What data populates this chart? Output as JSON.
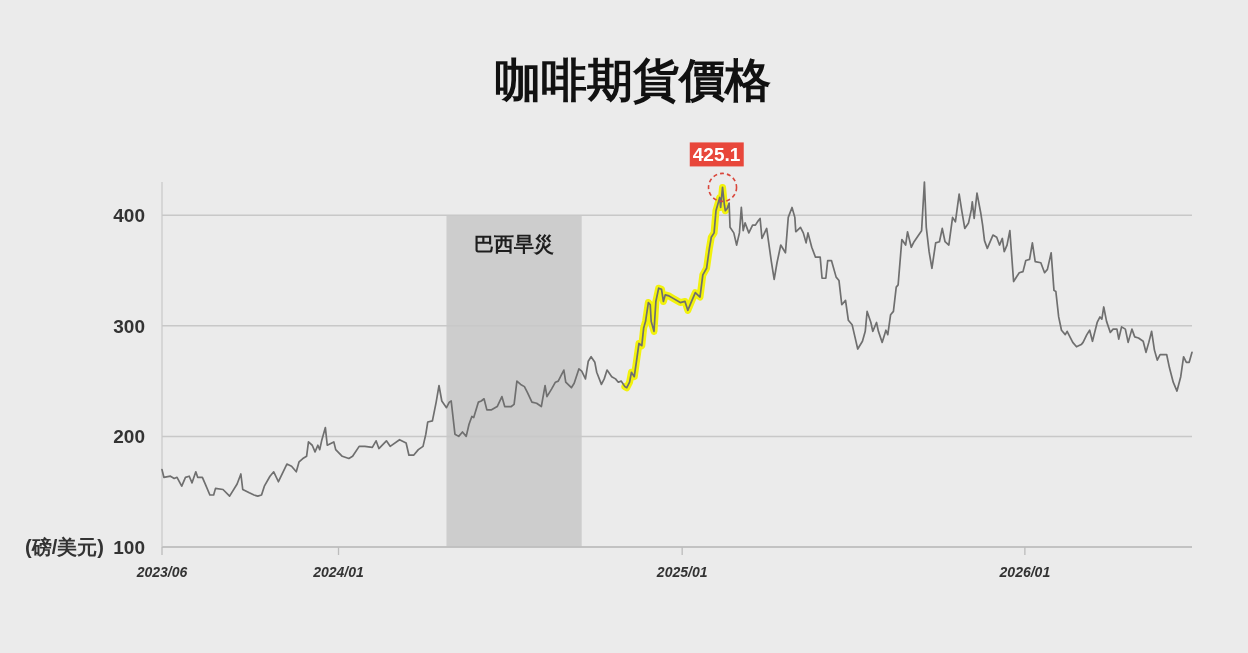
{
  "chart_data": {
    "type": "line",
    "title": "咖啡期貨價格",
    "ylabel": "(磅/美元)",
    "xlim": [
      "2023-06-27",
      "2026-06-28"
    ],
    "xticks": [
      {
        "value": "2023-06-27",
        "label": "2023/06"
      },
      {
        "value": "2024-01-01",
        "label": "2024/01"
      },
      {
        "value": "2025-01-01",
        "label": "2025/01"
      },
      {
        "value": "2026-01-01",
        "label": "2026/01"
      }
    ],
    "ylim": [
      100,
      430
    ],
    "yticks": [
      100,
      200,
      300,
      400
    ],
    "grid": "y",
    "bands": [
      {
        "axis": "x",
        "from": "2024-04-25",
        "to": "2024-09-16",
        "label": "巴西旱災",
        "color": "#cdcdcd"
      }
    ],
    "annotations": [
      {
        "text": "425.1",
        "x": "2025-02-13",
        "y": 425.1
      }
    ],
    "series": [
      {
        "color": "#6f6f6f",
        "x": [
          "2023-06-27",
          "2023-06-29",
          "2023-07-06",
          "2023-07-10",
          "2023-07-13",
          "2023-07-18",
          "2023-07-22",
          "2023-07-26",
          "2023-07-29",
          "2023-08-02",
          "2023-08-04",
          "2023-08-09",
          "2023-08-12",
          "2023-08-17",
          "2023-08-21",
          "2023-08-23",
          "2023-08-31",
          "2023-09-07",
          "2023-09-15",
          "2023-09-19",
          "2023-09-21",
          "2023-09-28",
          "2023-10-03",
          "2023-10-07",
          "2023-10-11",
          "2023-10-14",
          "2023-10-20",
          "2023-10-24",
          "2023-10-29",
          "2023-11-07",
          "2023-11-12",
          "2023-11-17",
          "2023-11-20",
          "2023-11-24",
          "2023-11-28",
          "2023-11-30",
          "2023-12-04",
          "2023-12-07",
          "2023-12-10",
          "2023-12-12",
          "2023-12-14",
          "2023-12-18",
          "2023-12-20",
          "2023-12-27",
          "2023-12-29",
          "2024-01-05",
          "2024-01-12",
          "2024-01-16",
          "2024-01-23",
          "2024-01-29",
          "2024-02-06",
          "2024-02-10",
          "2024-02-13",
          "2024-02-21",
          "2024-02-25",
          "2024-03-06",
          "2024-03-13",
          "2024-03-16",
          "2024-03-21",
          "2024-03-26",
          "2024-03-31",
          "2024-04-03",
          "2024-04-05",
          "2024-04-10",
          "2024-04-14",
          "2024-04-17",
          "2024-04-20",
          "2024-04-25",
          "2024-04-28",
          "2024-04-30",
          "2024-05-04",
          "2024-05-08",
          "2024-05-12",
          "2024-05-16",
          "2024-05-19",
          "2024-05-22",
          "2024-05-24",
          "2024-05-29",
          "2024-06-01",
          "2024-06-04",
          "2024-06-07",
          "2024-06-12",
          "2024-06-18",
          "2024-06-23",
          "2024-06-26",
          "2024-07-03",
          "2024-07-06",
          "2024-07-09",
          "2024-07-13",
          "2024-07-17",
          "2024-07-20",
          "2024-07-25",
          "2024-07-30",
          "2024-08-04",
          "2024-08-08",
          "2024-08-10",
          "2024-08-15",
          "2024-08-19",
          "2024-08-22",
          "2024-08-28",
          "2024-08-30",
          "2024-09-05",
          "2024-09-08",
          "2024-09-13",
          "2024-09-16",
          "2024-09-20",
          "2024-09-23",
          "2024-09-26",
          "2024-09-30",
          "2024-10-02",
          "2024-10-07",
          "2024-10-10",
          "2024-10-13",
          "2024-10-18",
          "2024-10-22",
          "2024-10-25",
          "2024-10-28",
          "2024-11-01",
          "2024-11-03",
          "2024-11-06",
          "2024-11-08",
          "2024-11-11",
          "2024-11-14",
          "2024-11-16",
          "2024-11-19",
          "2024-11-21",
          "2024-11-23",
          "2024-11-26",
          "2024-11-28",
          "2024-11-29",
          "2024-12-02",
          "2024-12-04",
          "2024-12-07",
          "2024-12-10",
          "2024-12-12",
          "2024-12-14",
          "2024-12-18",
          "2024-12-22",
          "2024-12-30",
          "2025-01-04",
          "2025-01-07",
          "2025-01-11",
          "2025-01-15",
          "2025-01-20",
          "2025-01-23",
          "2025-01-27",
          "2025-01-30",
          "2025-02-01",
          "2025-02-04",
          "2025-02-06",
          "2025-02-10",
          "2025-02-11",
          "2025-02-13",
          "2025-02-15",
          "2025-02-16",
          "2025-02-18",
          "2025-02-20",
          "2025-02-21",
          "2025-02-25",
          "2025-02-28",
          "2025-03-03",
          "2025-03-05",
          "2025-03-07",
          "2025-03-09",
          "2025-03-13",
          "2025-03-17",
          "2025-03-20",
          "2025-03-23",
          "2025-03-25",
          "2025-03-27",
          "2025-04-01",
          "2025-04-06",
          "2025-04-09",
          "2025-04-12",
          "2025-04-16",
          "2025-04-21",
          "2025-04-24",
          "2025-04-28",
          "2025-05-01",
          "2025-05-02",
          "2025-05-07",
          "2025-05-10",
          "2025-05-13",
          "2025-05-15",
          "2025-05-19",
          "2025-05-23",
          "2025-05-28",
          "2025-05-30",
          "2025-06-03",
          "2025-06-05",
          "2025-06-09",
          "2025-06-14",
          "2025-06-17",
          "2025-06-20",
          "2025-06-24",
          "2025-06-27",
          "2025-07-01",
          "2025-07-04",
          "2025-07-07",
          "2025-07-12",
          "2025-07-15",
          "2025-07-17",
          "2025-07-21",
          "2025-07-23",
          "2025-07-27",
          "2025-07-29",
          "2025-08-02",
          "2025-08-06",
          "2025-08-08",
          "2025-08-11",
          "2025-08-14",
          "2025-08-17",
          "2025-08-19",
          "2025-08-23",
          "2025-08-27",
          "2025-08-29",
          "2025-09-02",
          "2025-09-05",
          "2025-09-09",
          "2025-09-13",
          "2025-09-16",
          "2025-09-18",
          "2025-09-21",
          "2025-09-24",
          "2025-09-28",
          "2025-10-02",
          "2025-10-05",
          "2025-10-08",
          "2025-10-12",
          "2025-10-16",
          "2025-10-19",
          "2025-10-23",
          "2025-10-26",
          "2025-10-29",
          "2025-11-02",
          "2025-11-05",
          "2025-11-06",
          "2025-11-08",
          "2025-11-11",
          "2025-11-15",
          "2025-11-17",
          "2025-11-19",
          "2025-11-22",
          "2025-11-28",
          "2025-12-02",
          "2025-12-05",
          "2025-12-08",
          "2025-12-10",
          "2025-12-13",
          "2025-12-16",
          "2025-12-20",
          "2025-12-26",
          "2025-12-30",
          "2026-01-02",
          "2026-01-06",
          "2026-01-09",
          "2026-01-12",
          "2026-01-18",
          "2026-01-22",
          "2026-01-25",
          "2026-01-29",
          "2026-02-01",
          "2026-02-03",
          "2026-02-06",
          "2026-02-09",
          "2026-02-13",
          "2026-02-15",
          "2026-02-18",
          "2026-02-21",
          "2026-02-25",
          "2026-03-02",
          "2026-03-04",
          "2026-03-08",
          "2026-03-11",
          "2026-03-14",
          "2026-03-19",
          "2026-03-22",
          "2026-03-24",
          "2026-03-26",
          "2026-03-29",
          "2026-04-02",
          "2026-04-05",
          "2026-04-09",
          "2026-04-11",
          "2026-04-14",
          "2026-04-18",
          "2026-04-21",
          "2026-04-25",
          "2026-04-28",
          "2026-05-02",
          "2026-05-07",
          "2026-05-10",
          "2026-05-13",
          "2026-05-16",
          "2026-05-19",
          "2026-05-22",
          "2026-05-25",
          "2026-06-01",
          "2026-06-04",
          "2026-06-08",
          "2026-06-12",
          "2026-06-16",
          "2026-06-19",
          "2026-06-22",
          "2026-06-25",
          "2026-06-28"
        ],
        "values": [
          170,
          163,
          164,
          162,
          163,
          155,
          163,
          164,
          158,
          168,
          163,
          163,
          157,
          147,
          147,
          153,
          152,
          146,
          157,
          166,
          152,
          149,
          147,
          146,
          147,
          155,
          164,
          168,
          159,
          175,
          173,
          168,
          177,
          180,
          182,
          195,
          192,
          186,
          192,
          188,
          196,
          208,
          192,
          195,
          188,
          182,
          180,
          182,
          191,
          191,
          190,
          196,
          189,
          196,
          191,
          197,
          194,
          183,
          183,
          188,
          191,
          202,
          213,
          214,
          231,
          246,
          232,
          226,
          231,
          232,
          202,
          200,
          204,
          200,
          211,
          218,
          217,
          231,
          232,
          234,
          224,
          224,
          227,
          236,
          227,
          227,
          229,
          250,
          247,
          245,
          240,
          231,
          230,
          227,
          246,
          236,
          243,
          249,
          250,
          260,
          249,
          244,
          248,
          261,
          259,
          252,
          268,
          272,
          267,
          258,
          247,
          252,
          260,
          254,
          252,
          249,
          250,
          245,
          244,
          249,
          258,
          254,
          272,
          284,
          282,
          298,
          304,
          321,
          319,
          304,
          295,
          322,
          334,
          333,
          322,
          328,
          327,
          325,
          321,
          322,
          314,
          322,
          330,
          326,
          346,
          352,
          370,
          380,
          384,
          404,
          416,
          407,
          425.1,
          409,
          404,
          406,
          411,
          389,
          384,
          373,
          384,
          407,
          386,
          393,
          384,
          391,
          391,
          395,
          397,
          379,
          388,
          358,
          342,
          357,
          373,
          366,
          398,
          407,
          398,
          385,
          389,
          384,
          375,
          384,
          371,
          362,
          362,
          343,
          343,
          359,
          359,
          344,
          341,
          319,
          323,
          305,
          301,
          290,
          279,
          286,
          295,
          313,
          303,
          295,
          303,
          295,
          285,
          296,
          292,
          310,
          313,
          335,
          337,
          378,
          373,
          385,
          371,
          376,
          381,
          386,
          430,
          389,
          367,
          352,
          375,
          376,
          388,
          376,
          373,
          398,
          394,
          419,
          403,
          388,
          393,
          405,
          412,
          397,
          420,
          402,
          391,
          377,
          370,
          382,
          380,
          373,
          379,
          367,
          373,
          386,
          340,
          348,
          349,
          359,
          360,
          375,
          358,
          357,
          348,
          351,
          366,
          332,
          331,
          308,
          296,
          292,
          295,
          290,
          285,
          281,
          283,
          285,
          292,
          296,
          286,
          303,
          308,
          306,
          317,
          304,
          294,
          297,
          297,
          288,
          299,
          297,
          285,
          297,
          290,
          289,
          286,
          276,
          285,
          295,
          278,
          269,
          274,
          274,
          262,
          249,
          241,
          254,
          272,
          267,
          267,
          276
        ]
      },
      {
        "color": "#f2f20c",
        "x": [
          "2024-11-01",
          "2024-11-03",
          "2024-11-06",
          "2024-11-08",
          "2024-11-11",
          "2024-11-14",
          "2024-11-16",
          "2024-11-19",
          "2024-11-21",
          "2024-11-23",
          "2024-11-26",
          "2024-11-28",
          "2024-11-29",
          "2024-12-02",
          "2024-12-04",
          "2024-12-07",
          "2024-12-10",
          "2024-12-12",
          "2024-12-14",
          "2024-12-18",
          "2024-12-22",
          "2024-12-30",
          "2025-01-04",
          "2025-01-07",
          "2025-01-11",
          "2025-01-15",
          "2025-01-20",
          "2025-01-23",
          "2025-01-27",
          "2025-01-30",
          "2025-02-01",
          "2025-02-04",
          "2025-02-06",
          "2025-02-10",
          "2025-02-11",
          "2025-02-13",
          "2025-02-15",
          "2025-02-16"
        ],
        "values": [
          245,
          244,
          249,
          258,
          254,
          272,
          284,
          282,
          298,
          304,
          321,
          319,
          304,
          295,
          322,
          334,
          333,
          322,
          328,
          327,
          325,
          321,
          322,
          314,
          322,
          330,
          326,
          346,
          352,
          370,
          380,
          384,
          404,
          416,
          407,
          425.1,
          409,
          404
        ]
      }
    ]
  }
}
